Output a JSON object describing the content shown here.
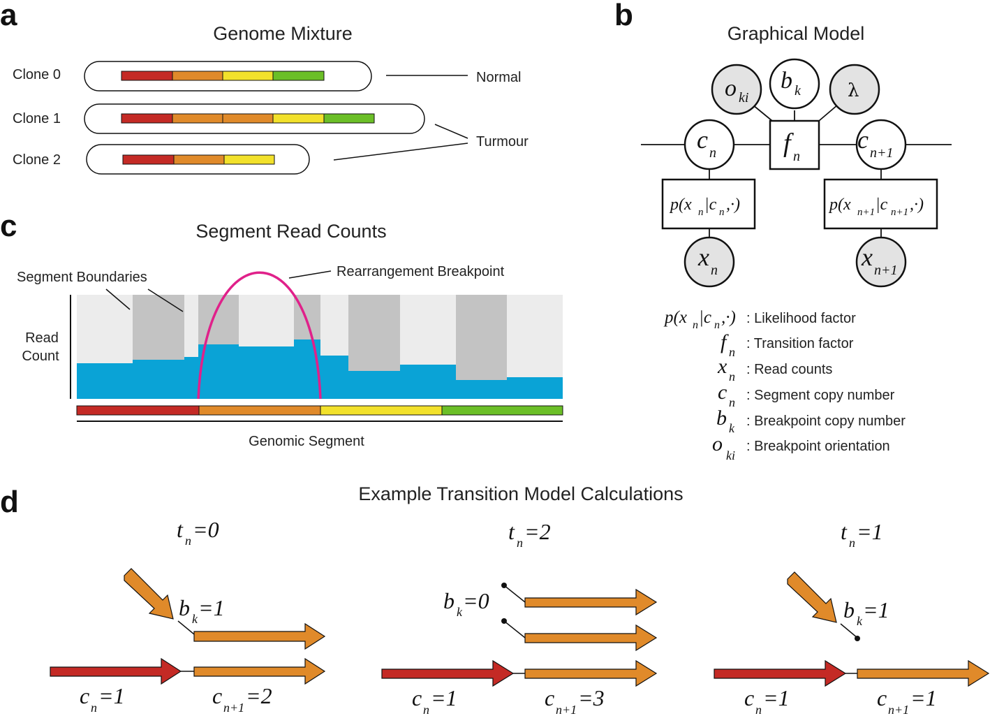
{
  "panels": {
    "a": "a",
    "b": "b",
    "c": "c",
    "d": "d"
  },
  "panel_a": {
    "title": "Genome Mixture",
    "clones": [
      "Clone 0",
      "Clone 1",
      "Clone 2"
    ],
    "normal_label": "Normal",
    "tumour_label": "Turmour",
    "segment_colors": [
      "#c42a25",
      "#e08a2a",
      "#f2e12b",
      "#6bbf27"
    ]
  },
  "panel_b": {
    "title": "Graphical Model",
    "legend": [
      {
        "symbol": "p(x_n|c_n,·)",
        "text": ": Likelihood factor"
      },
      {
        "symbol": "f_n",
        "text": ": Transition factor"
      },
      {
        "symbol": "x_n",
        "text": ": Read counts"
      },
      {
        "symbol": "c_n",
        "text": ": Segment copy number"
      },
      {
        "symbol": "b_k",
        "text": ": Breakpoint copy number"
      },
      {
        "symbol": "o_ki",
        "text": ": Breakpoint orientation"
      }
    ],
    "observed_fill": "#e3e3e3"
  },
  "panel_c": {
    "title": "Segment Read Counts",
    "segment_boundaries": "Segment Boundaries",
    "breakpoint": "Rearrangement Breakpoint",
    "ylabel_line1": "Read",
    "ylabel_line2": "Count",
    "xlabel": "Genomic Segment",
    "bar_color": "#0aa3d6",
    "arc_color": "#e0218a"
  },
  "panel_d": {
    "title": "Example Transition Model Calculations",
    "examples": [
      {
        "t": "t_n=0",
        "b": "b_k=1",
        "cn": "c_n=1",
        "cn1": "c_{n+1}=2"
      },
      {
        "t": "t_n=2",
        "b": "b_k=0",
        "cn": "c_n=1",
        "cn1": "c_{n+1}=3"
      },
      {
        "t": "t_n=1",
        "b": "b_k=1",
        "cn": "c_n=1",
        "cn1": "c_{n+1}=1"
      }
    ]
  }
}
